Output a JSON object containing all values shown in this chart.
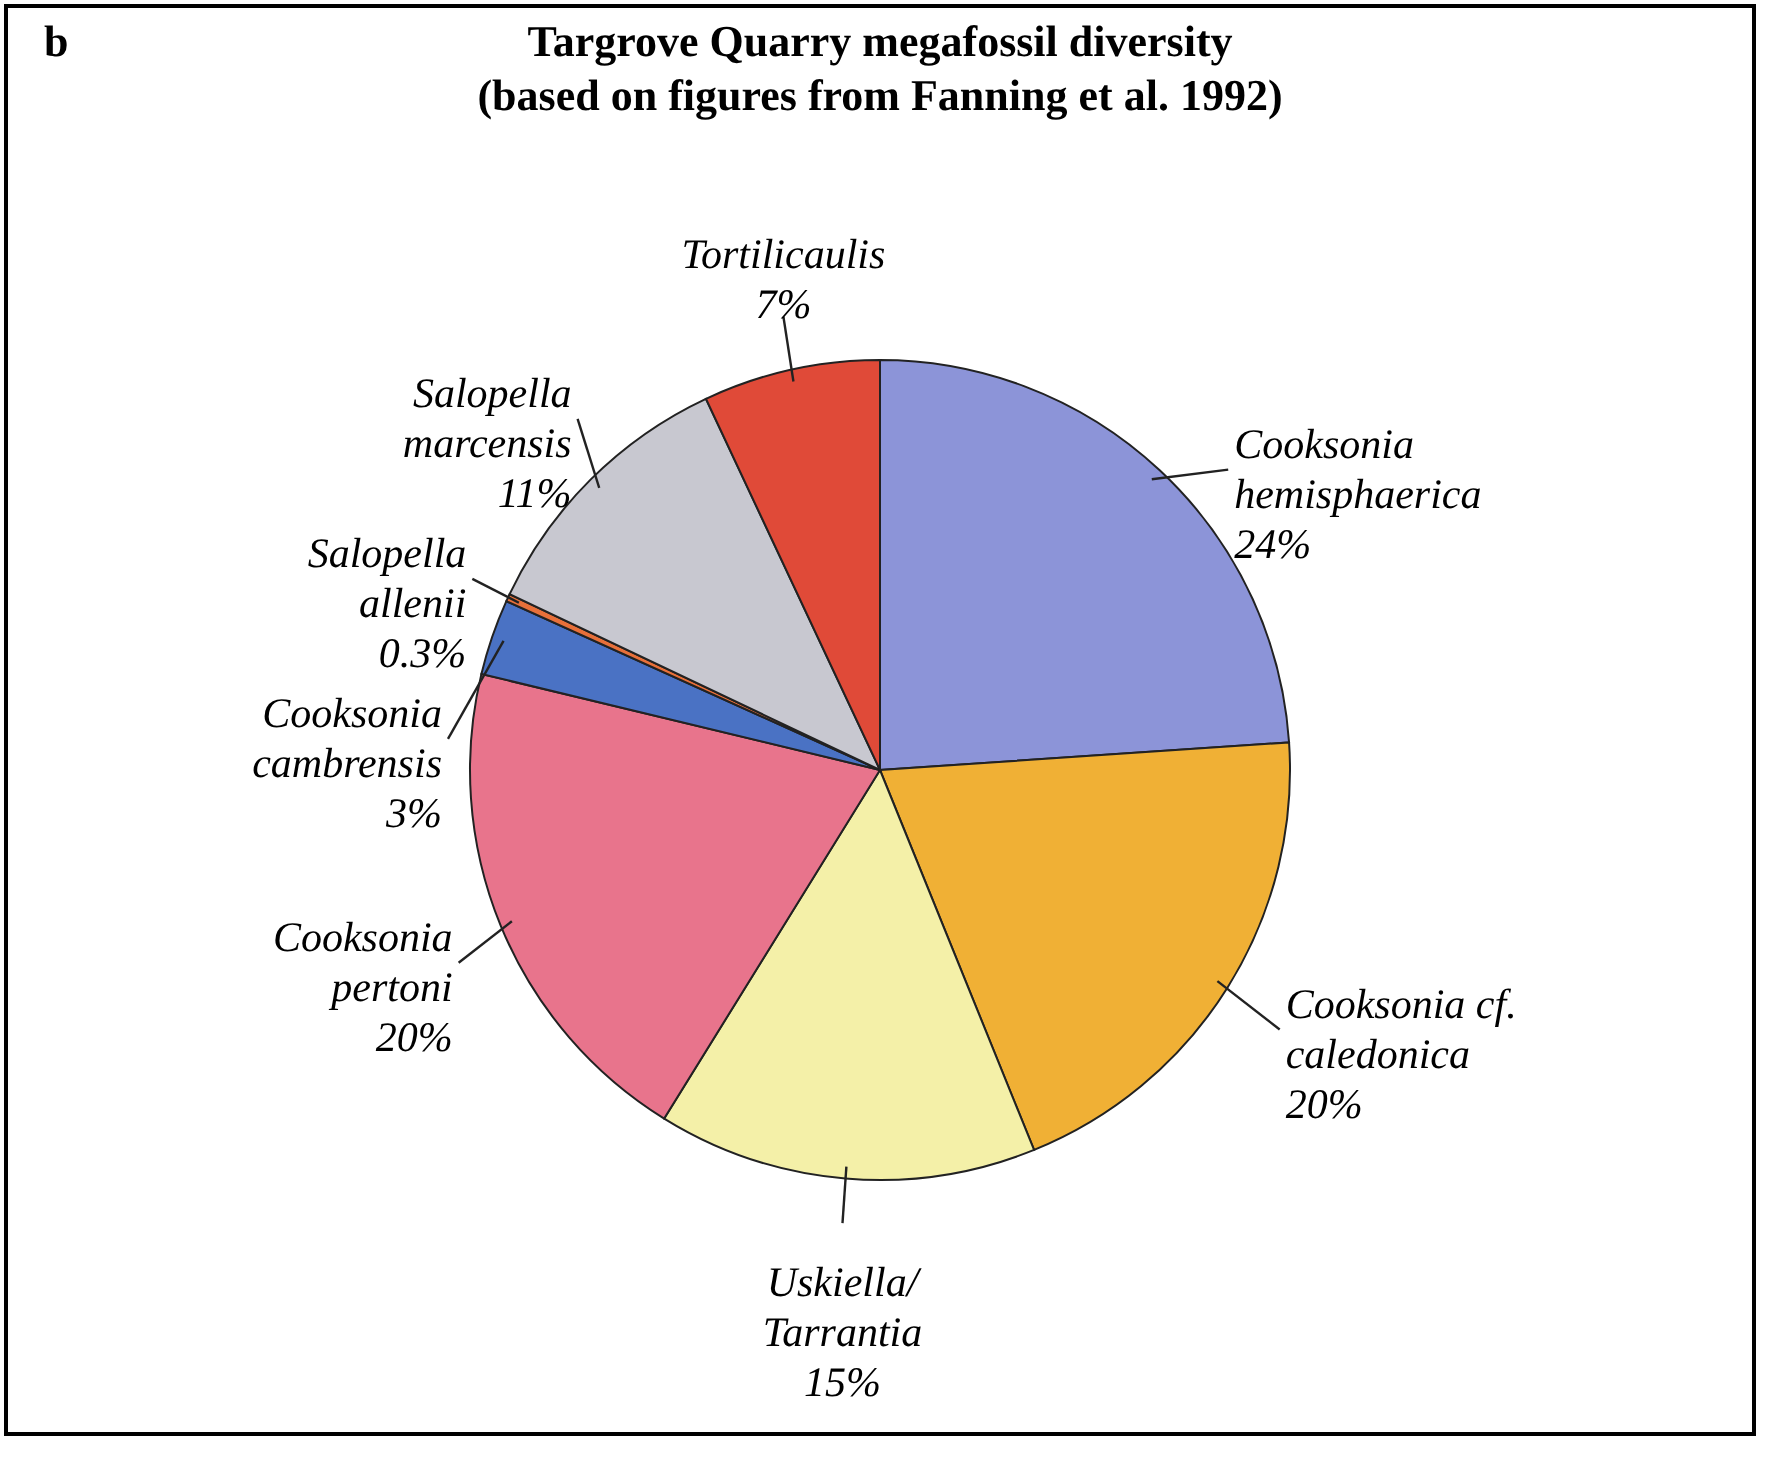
{
  "chart_data": {
    "type": "pie",
    "title": "Targrove Quarry megafossil diversity (based on figures from Fanning et al. 1992)",
    "annotations": [
      "b"
    ],
    "categories": [
      "Cooksonia hemisphaerica",
      "Cooksonia cf. caledonica",
      "Uskiella/Tarrantia",
      "Cooksonia pertoni",
      "Cooksonia cambrensis",
      "Salopella allenii",
      "Salopella marcensis",
      "Tortilicaulis"
    ],
    "values": [
      24,
      20,
      15,
      20,
      3,
      0.3,
      11,
      7
    ],
    "value_labels": [
      "24%",
      "20%",
      "15%",
      "20%",
      "3%",
      "0.3%",
      "11%",
      "7%"
    ],
    "colors": [
      "#8c94d8",
      "#f0b035",
      "#f4f0a8",
      "#e8748c",
      "#4a72c4",
      "#e8703a",
      "#c8c8d0",
      "#e04a38"
    ]
  }
}
